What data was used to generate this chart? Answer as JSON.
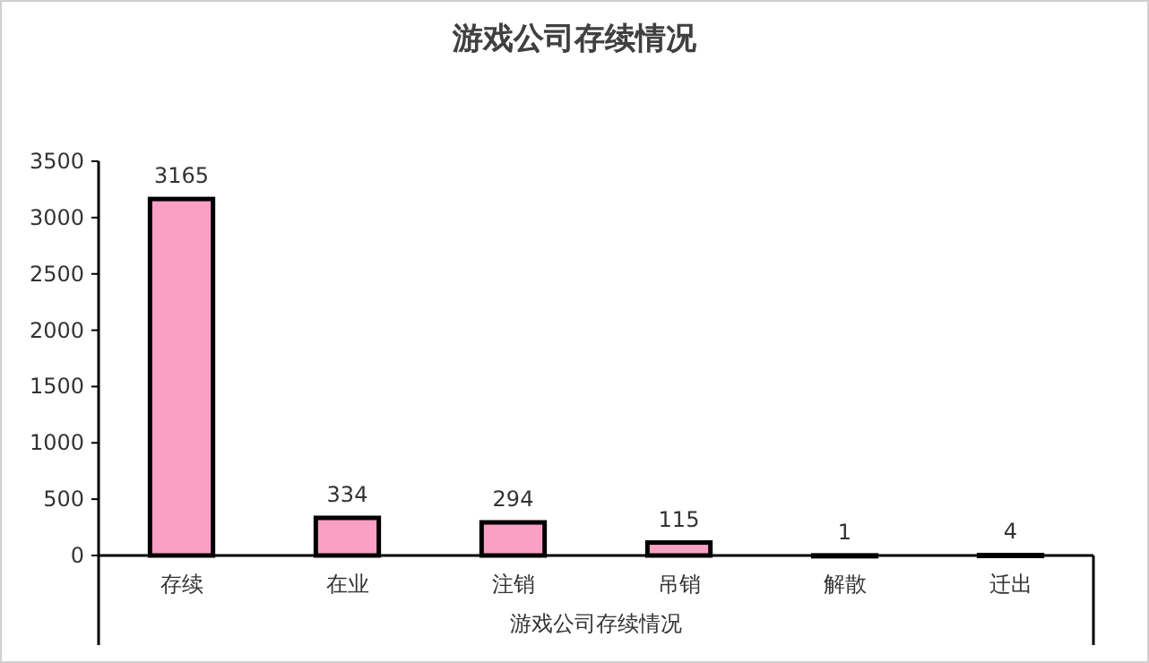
{
  "chart_data": {
    "type": "bar",
    "title": "游戏公司存续情况",
    "xlabel": "游戏公司存续情况",
    "categories": [
      "存续",
      "在业",
      "注销",
      "吊销",
      "解散",
      "迁出"
    ],
    "values": [
      3165,
      334,
      294,
      115,
      1,
      4
    ],
    "color": "#f9a0c4",
    "ylim": [
      0,
      3500
    ],
    "yticks": [
      0,
      500,
      1000,
      1500,
      2000,
      2500,
      3000,
      3500
    ],
    "data_labels": true,
    "grid": false
  }
}
